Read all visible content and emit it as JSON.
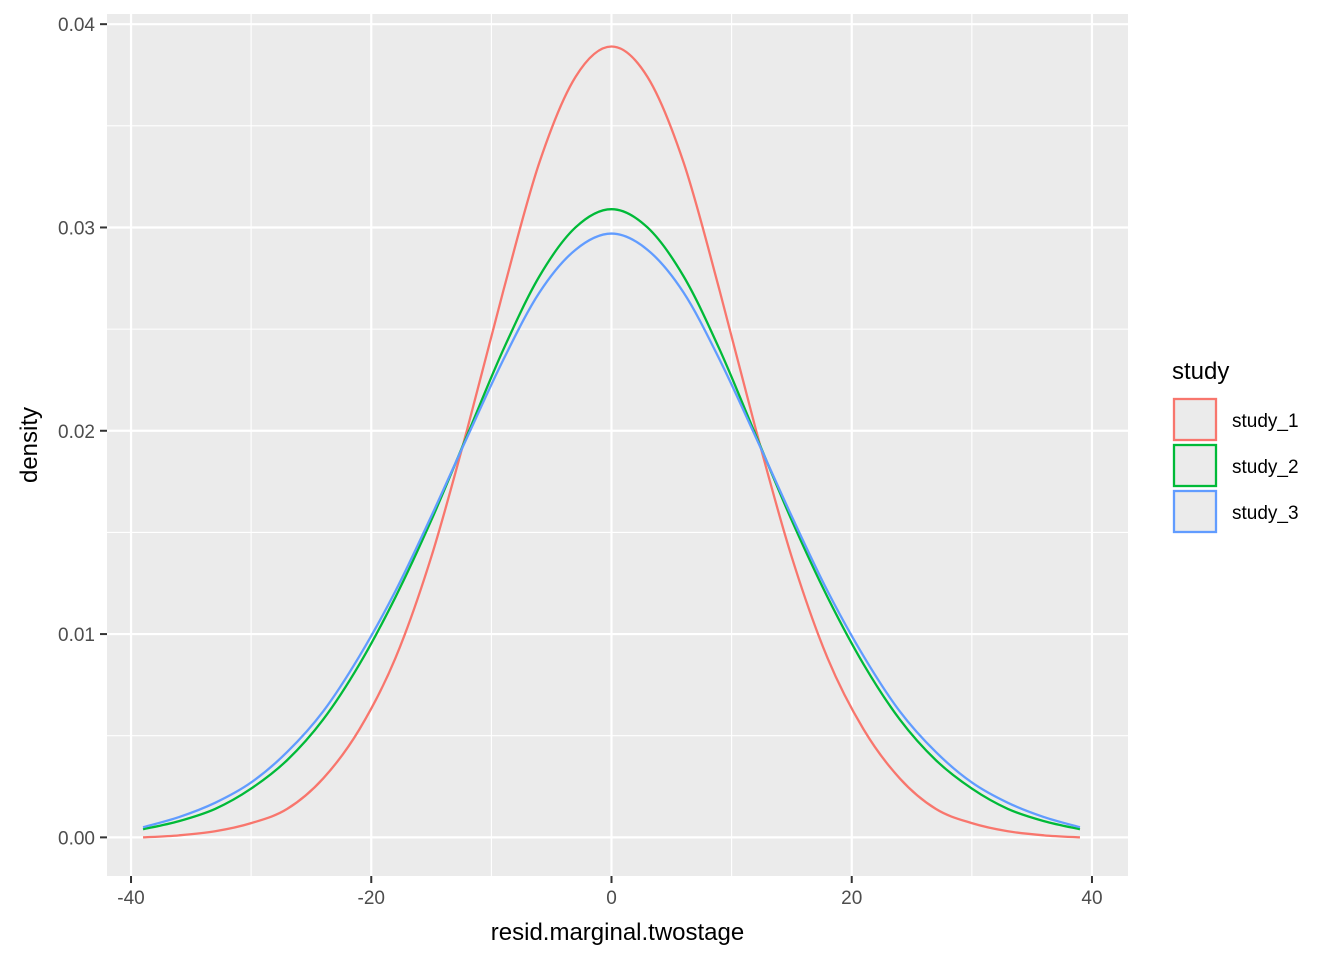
{
  "chart_data": {
    "type": "line",
    "title": "",
    "xlabel": "resid.marginal.twostage",
    "ylabel": "density",
    "xlim": [
      -42,
      43
    ],
    "ylim": [
      -0.0019,
      0.0405
    ],
    "x_ticks": [
      -40,
      -20,
      0,
      20,
      40
    ],
    "x_tick_labels": [
      "-40",
      "-20",
      "0",
      "20",
      "40"
    ],
    "y_ticks": [
      0.0,
      0.01,
      0.02,
      0.03,
      0.04
    ],
    "y_tick_labels": [
      "0.00",
      "0.01",
      "0.02",
      "0.03",
      "0.04"
    ],
    "grid": true,
    "panel_background": "#ebebeb",
    "legend": {
      "title": "study",
      "position": "right",
      "entries": [
        "study_1",
        "study_2",
        "study_3"
      ]
    },
    "series": [
      {
        "name": "study_1",
        "color": "#f8766d",
        "x": [
          -39,
          -36,
          -33,
          -30,
          -27,
          -24,
          -21,
          -18,
          -15,
          -12,
          -9,
          -6,
          -3,
          0,
          3,
          6,
          9,
          12,
          15,
          18,
          21,
          24,
          27,
          30,
          33,
          36,
          39
        ],
        "y": [
          0.0,
          0.0001,
          0.0003,
          0.0007,
          0.0014,
          0.0029,
          0.0053,
          0.0088,
          0.0138,
          0.0201,
          0.0269,
          0.0332,
          0.0374,
          0.0389,
          0.0374,
          0.0332,
          0.0269,
          0.0201,
          0.0138,
          0.0088,
          0.0053,
          0.0029,
          0.0014,
          0.0007,
          0.0003,
          0.0001,
          0.0
        ]
      },
      {
        "name": "study_2",
        "color": "#00ba38",
        "x": [
          -39,
          -36,
          -33,
          -30,
          -27,
          -24,
          -21,
          -18,
          -15,
          -12,
          -9,
          -6,
          -3,
          0,
          3,
          6,
          9,
          12,
          15,
          18,
          21,
          24,
          27,
          30,
          33,
          36,
          39
        ],
        "y": [
          0.0004,
          0.0008,
          0.0014,
          0.0024,
          0.0038,
          0.0058,
          0.0085,
          0.0118,
          0.0156,
          0.0198,
          0.024,
          0.0276,
          0.03,
          0.0309,
          0.03,
          0.0276,
          0.024,
          0.0198,
          0.0156,
          0.0118,
          0.0085,
          0.0058,
          0.0038,
          0.0024,
          0.0014,
          0.0008,
          0.0004
        ]
      },
      {
        "name": "study_3",
        "color": "#619cff",
        "x": [
          -39,
          -36,
          -33,
          -30,
          -27,
          -24,
          -21,
          -18,
          -15,
          -12,
          -9,
          -6,
          -3,
          0,
          3,
          6,
          9,
          12,
          15,
          18,
          21,
          24,
          27,
          30,
          33,
          36,
          39
        ],
        "y": [
          0.0005,
          0.001,
          0.0017,
          0.0027,
          0.0042,
          0.0062,
          0.0089,
          0.0121,
          0.0158,
          0.0197,
          0.0235,
          0.0268,
          0.0289,
          0.0297,
          0.0289,
          0.0268,
          0.0235,
          0.0197,
          0.0158,
          0.0121,
          0.0089,
          0.0062,
          0.0042,
          0.0027,
          0.0017,
          0.001,
          0.0005
        ]
      }
    ]
  }
}
